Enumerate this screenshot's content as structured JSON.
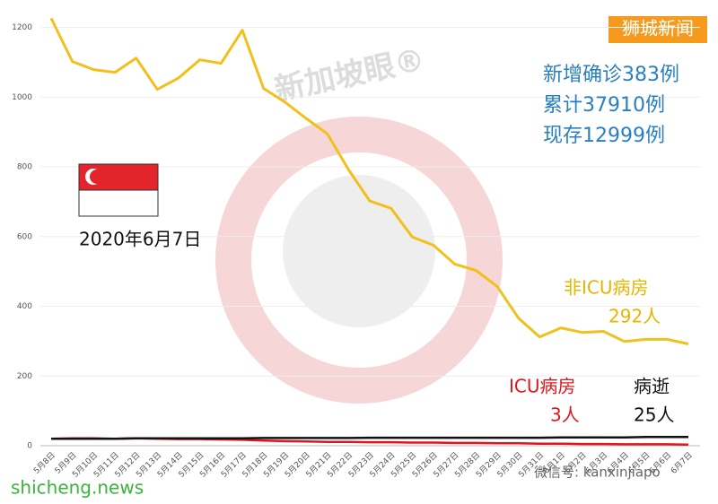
{
  "chart_data": {
    "type": "line",
    "categories": [
      "5月8日",
      "5月9日",
      "5月10日",
      "5月11日",
      "5月12日",
      "5月13日",
      "5月14日",
      "5月15日",
      "5月16日",
      "5月17日",
      "5月18日",
      "5月19日",
      "5月20日",
      "5月21日",
      "5月22日",
      "5月23日",
      "5月24日",
      "5月25日",
      "5月26日",
      "5月27日",
      "5月28日",
      "5月29日",
      "5月30日",
      "5月31日",
      "6月1日",
      "6月2日",
      "6月3日",
      "6月4日",
      "6月5日",
      "6月6日",
      "6月7日"
    ],
    "series": [
      {
        "name": "非ICU病房",
        "end_label": "292人",
        "color": "#f2c01e",
        "values": [
          1226,
          1102,
          1079,
          1071,
          1112,
          1022,
          1055,
          1107,
          1097,
          1192,
          1025,
          986,
          939,
          895,
          792,
          702,
          681,
          599,
          575,
          521,
          503,
          457,
          366,
          312,
          338,
          325,
          328,
          299,
          305,
          305,
          292
        ]
      },
      {
        "name": "ICU病房",
        "end_label": "3人",
        "color": "#e0161c",
        "values": [
          20,
          21,
          21,
          20,
          21,
          20,
          19,
          19,
          18,
          17,
          15,
          13,
          12,
          11,
          11,
          10,
          10,
          9,
          9,
          8,
          8,
          7,
          7,
          6,
          6,
          5,
          5,
          4,
          4,
          4,
          3
        ]
      },
      {
        "name": "病逝",
        "end_label": "25人",
        "color": "#111111",
        "values": [
          20,
          20,
          20,
          20,
          21,
          21,
          21,
          21,
          21,
          21,
          22,
          22,
          22,
          22,
          22,
          23,
          23,
          23,
          23,
          23,
          23,
          23,
          23,
          23,
          24,
          24,
          24,
          24,
          25,
          25,
          25
        ]
      }
    ],
    "ylim": [
      0,
      1240
    ],
    "yticks": [
      0,
      200,
      400,
      600,
      800,
      1000,
      1200
    ],
    "annotations": {
      "brand": "狮城新闻",
      "stats": [
        "新增确诊383例",
        "累计37910例",
        "现存12999例"
      ],
      "date": "2020年6月7日",
      "watermark": "新加坡眼®",
      "site": "shicheng.news",
      "wechat": "微信号: kanxinjiapo"
    }
  }
}
